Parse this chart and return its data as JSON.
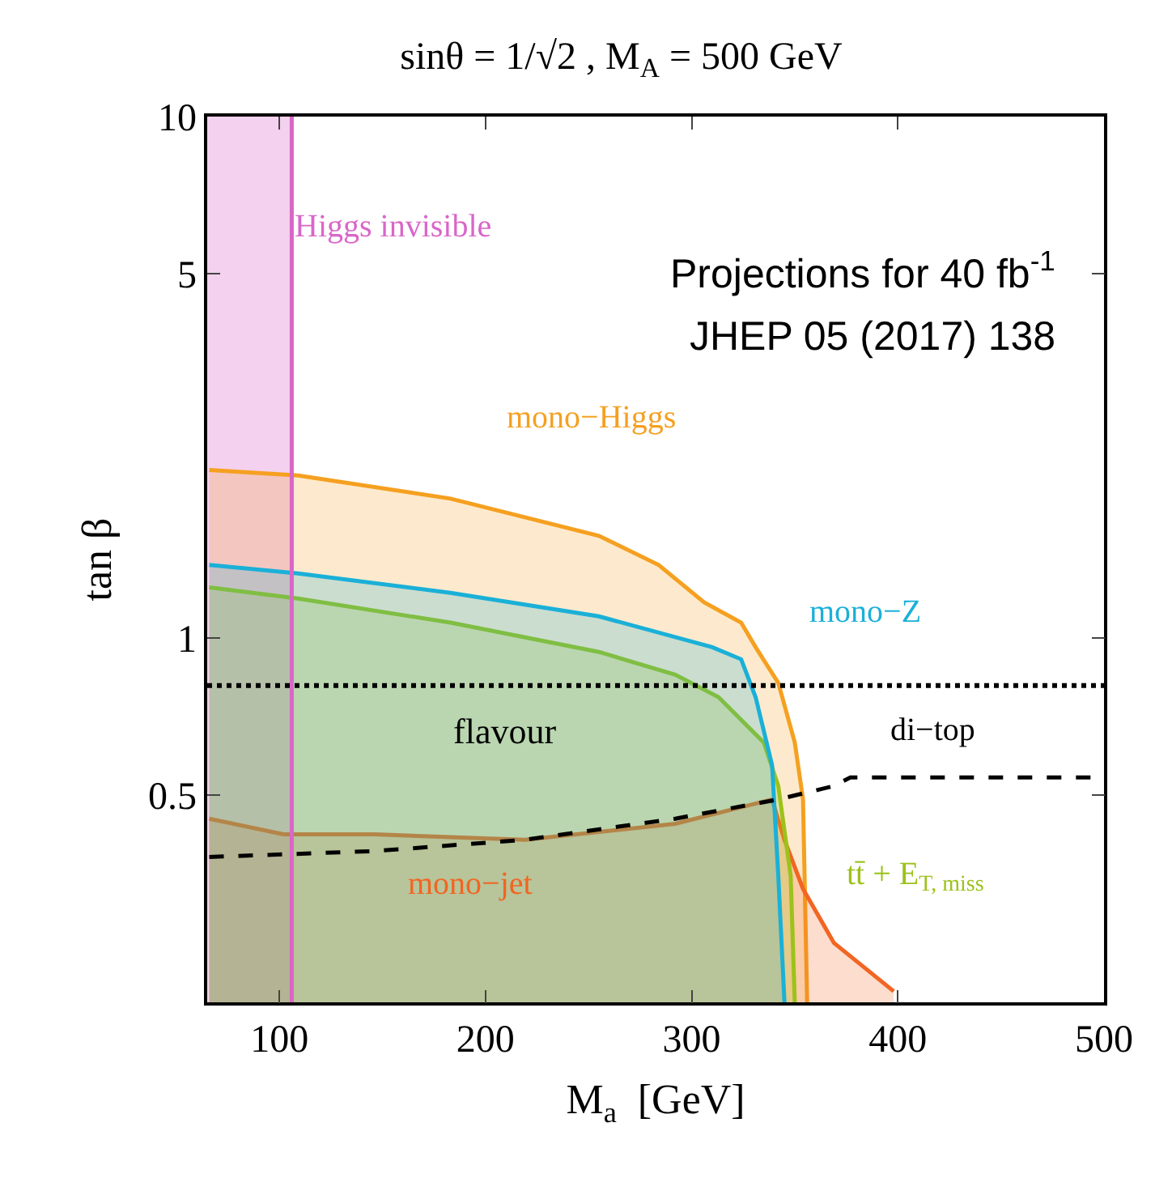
{
  "chart_data": {
    "type": "area",
    "title": "sinθ = 1/√2 , M$_{A}$ = 500 GeV",
    "xlabel": "M$_{a}$  [GeV]",
    "ylabel": "tan β",
    "annotations": [
      "Projections for 40 fb$^{-1}$",
      "JHEP 05 (2017) 138"
    ],
    "log": "y",
    "xlim": [
      65,
      500
    ],
    "ylim": [
      0.2,
      10
    ],
    "xticks": [
      100,
      200,
      300,
      400,
      500
    ],
    "yticks": [
      0.5,
      1,
      5,
      10
    ],
    "grid": false,
    "series": [
      {
        "name": "mono−Higgs",
        "color": "#f5a020",
        "x": [
          66,
          109,
          183,
          255,
          284,
          306,
          324,
          331,
          342,
          350,
          354,
          356
        ],
        "values": [
          2.1,
          2.05,
          1.85,
          1.57,
          1.38,
          1.17,
          1.07,
          0.96,
          0.82,
          0.63,
          0.49,
          0.2
        ]
      },
      {
        "name": "mono−jet",
        "color": "#f26522",
        "x": [
          66,
          102,
          146,
          219,
          292,
          339,
          345,
          354,
          369,
          398
        ],
        "values": [
          0.45,
          0.42,
          0.42,
          0.41,
          0.44,
          0.49,
          0.41,
          0.33,
          0.26,
          0.21
        ]
      },
      {
        "name": "tt̄ + E$_{T, miss}$",
        "color": "#9cc21a",
        "x": [
          66,
          109,
          183,
          255,
          292,
          313,
          335,
          342,
          348,
          350
        ],
        "values": [
          1.25,
          1.19,
          1.07,
          0.94,
          0.85,
          0.77,
          0.63,
          0.52,
          0.35,
          0.2
        ]
      },
      {
        "name": "mono−Z",
        "color": "#1ab0d8",
        "x": [
          66,
          109,
          183,
          255,
          310,
          324,
          331,
          339,
          342,
          345
        ],
        "values": [
          1.38,
          1.33,
          1.22,
          1.1,
          0.96,
          0.91,
          0.77,
          0.57,
          0.35,
          0.2
        ]
      },
      {
        "name": "di−top",
        "color": "#000000",
        "type": "line",
        "line_style": "dashed",
        "x": [
          66,
          146,
          219,
          292,
          342,
          369,
          377,
          500
        ],
        "values": [
          0.38,
          0.39,
          0.41,
          0.45,
          0.49,
          0.52,
          0.54,
          0.54
        ]
      }
    ],
    "bands": [
      {
        "axis": "x",
        "from": 65,
        "to": 106,
        "label": "Higgs invisible",
        "color": "#d966c8"
      }
    ],
    "ref_lines": [
      {
        "axis": "x",
        "value": 106,
        "color": "#d966c8",
        "line_style": "solid"
      },
      {
        "axis": "y",
        "value": 0.81,
        "label": "flavour",
        "color": "#000000",
        "line_style": "dotted"
      }
    ]
  }
}
